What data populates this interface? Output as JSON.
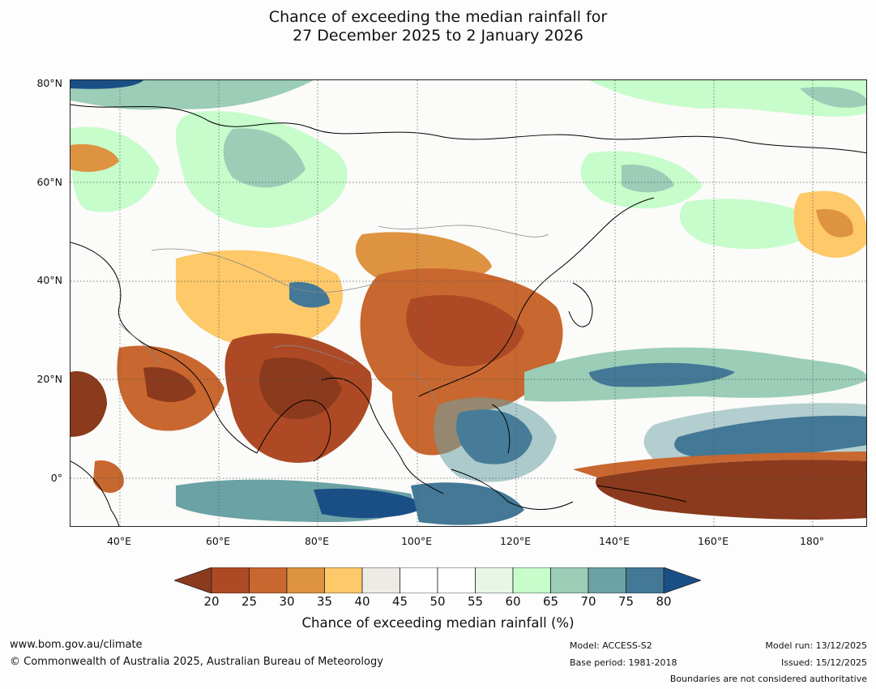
{
  "title": {
    "line1": "Chance of exceeding the median rainfall for",
    "line2": "27 December 2025 to 2 January 2026"
  },
  "map": {
    "lat_labels": [
      "80°N",
      "60°N",
      "40°N",
      "20°N",
      "0°"
    ],
    "lon_labels": [
      "40°E",
      "60°E",
      "80°E",
      "100°E",
      "120°E",
      "140°E",
      "160°E",
      "180°"
    ],
    "extent": {
      "lon_min": 30,
      "lon_max": 191,
      "lat_min": -10,
      "lat_max": 80
    },
    "regions": [
      {
        "name": "india-dry",
        "category": "20"
      },
      {
        "name": "china-dry",
        "category": "25"
      },
      {
        "name": "arabia-dry",
        "category": "30"
      },
      {
        "name": "east-africa-dry",
        "category": "20"
      },
      {
        "name": "west-pacific-dry",
        "category": "20"
      },
      {
        "name": "philippines-wet",
        "category": "80"
      },
      {
        "name": "central-pacific-wet",
        "category": "80"
      },
      {
        "name": "indian-ocean-wet",
        "category": "75"
      },
      {
        "name": "siberia-wet",
        "category": "60"
      },
      {
        "name": "arctic-wet",
        "category": "70"
      }
    ]
  },
  "colorbar": {
    "ticks": [
      "20",
      "25",
      "30",
      "35",
      "40",
      "45",
      "50",
      "55",
      "60",
      "65",
      "70",
      "75",
      "80"
    ],
    "colors": [
      "#8b3a1d",
      "#ad4a25",
      "#c8672f",
      "#de9340",
      "#fdc969",
      "#ecebe6",
      "#ffffff",
      "#ffffff",
      "#e8f6e8",
      "#c7fccb",
      "#9bcdb7",
      "#6ba2a5",
      "#437896",
      "#1a4f86"
    ],
    "label": "Chance of exceeding median rainfall (%)"
  },
  "footer": {
    "url": "www.bom.gov.au/climate",
    "copyright": "© Commonwealth of Australia 2025, Australian Bureau of Meteorology",
    "model": "Model: ACCESS-S2",
    "base_period": "Base period: 1981-2018",
    "model_run": "Model run: 13/12/2025",
    "issued": "Issued: 15/12/2025",
    "boundaries": "Boundaries are not considered authoritative"
  }
}
